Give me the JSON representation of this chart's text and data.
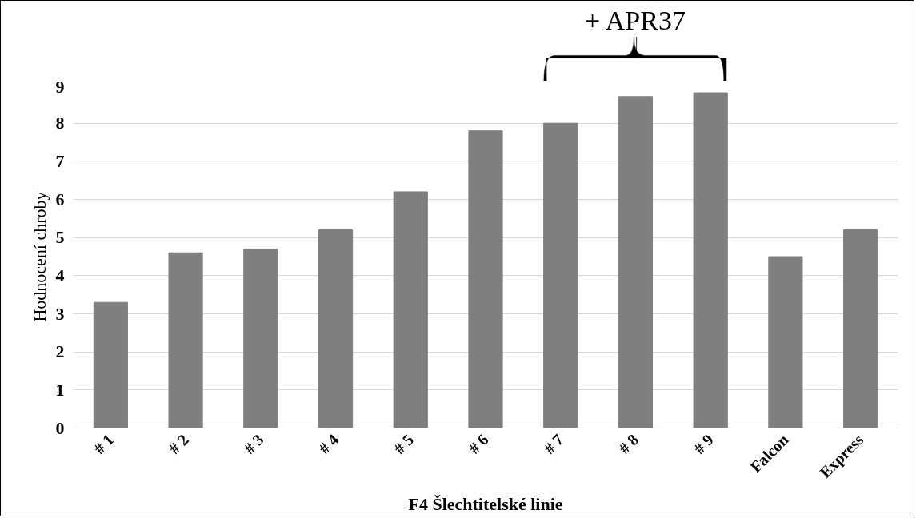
{
  "chart_data": {
    "type": "bar",
    "xlabel": "F4 Šlechtitelské linie",
    "ylabel": "Hodnocení chroby",
    "categories": [
      "# 1",
      "# 2",
      "# 3",
      "# 4",
      "# 5",
      "# 6",
      "# 7",
      "# 8",
      "# 9",
      "Falcon",
      "Express"
    ],
    "values": [
      3.3,
      4.6,
      4.7,
      5.2,
      6.2,
      7.8,
      8.0,
      8.7,
      8.8,
      4.5,
      5.2
    ],
    "color": "#7f7f7f",
    "ylim": [
      0,
      9
    ],
    "yticks": [
      0,
      1,
      2,
      3,
      4,
      5,
      6,
      7,
      8,
      9
    ],
    "grid": "y",
    "annotations": [
      "+ APR37"
    ]
  }
}
